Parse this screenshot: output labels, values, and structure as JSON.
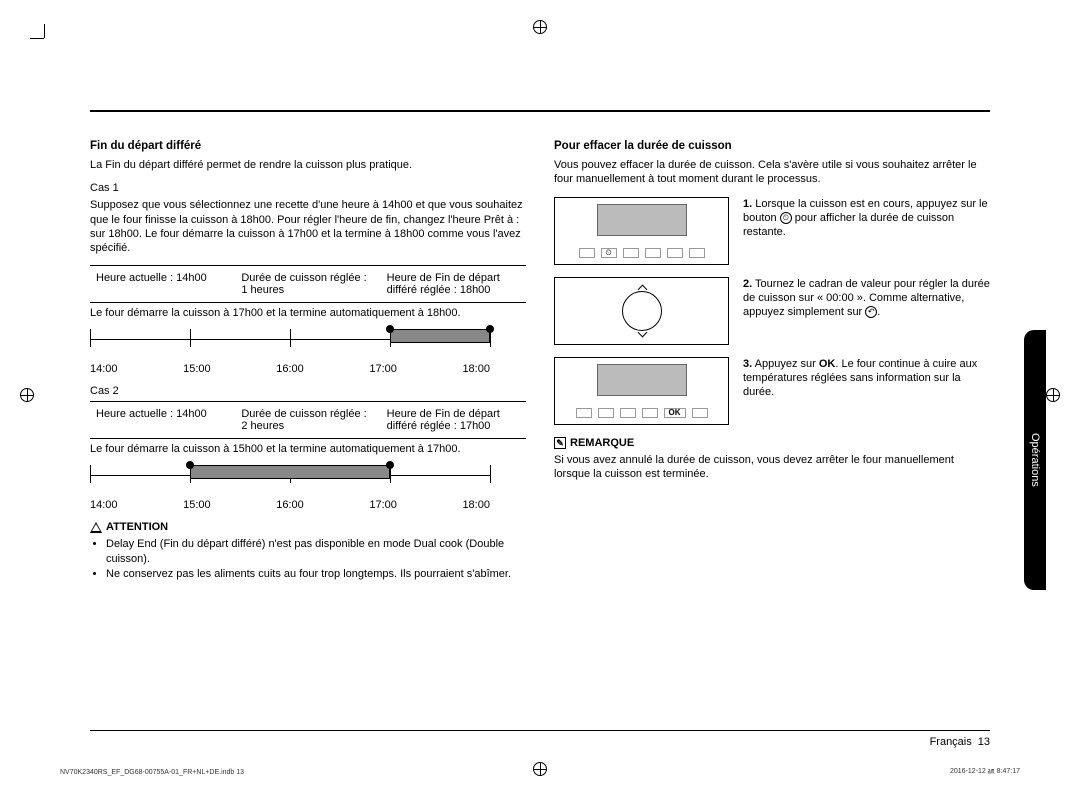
{
  "left": {
    "h1": "Fin du départ différé",
    "intro": "La Fin du départ différé permet de rendre la cuisson plus pratique.",
    "case1": {
      "label": "Cas 1",
      "desc": "Supposez que vous sélectionnez une recette d'une heure à 14h00 et que vous souhaitez que le four finisse la cuisson à 18h00. Pour régler l'heure de fin, changez l'heure Prêt à : sur 18h00. Le four démarre la cuisson à 17h00 et la termine à 18h00 comme vous l'avez spécifié.",
      "t1": "Heure actuelle : 14h00",
      "t2a": "Durée de cuisson réglée :",
      "t2b": "1 heures",
      "t3a": "Heure de Fin de départ",
      "t3b": "différé réglée : 18h00",
      "caption": "Le four démarre la cuisson à 17h00 et la termine automatiquement à 18h00.",
      "fill_start_pct": 75,
      "fill_end_pct": 100
    },
    "case2": {
      "label": "Cas 2",
      "t1": "Heure actuelle : 14h00",
      "t2a": "Durée de cuisson réglée :",
      "t2b": "2 heures",
      "t3a": "Heure de Fin de départ",
      "t3b": "différé réglée : 17h00",
      "caption": "Le four démarre la cuisson à 15h00 et la termine automatiquement à 17h00.",
      "fill_start_pct": 25,
      "fill_end_pct": 75
    },
    "timeline_labels": [
      "14:00",
      "15:00",
      "16:00",
      "17:00",
      "18:00"
    ],
    "attention": {
      "title": "ATTENTION",
      "b1": "Delay End (Fin du départ différé) n'est pas disponible en mode Dual cook (Double cuisson).",
      "b2": "Ne conservez pas les aliments cuits au four trop longtemps. Ils pourraient s'abîmer."
    }
  },
  "right": {
    "h1": "Pour effacer la durée de cuisson",
    "intro": "Vous pouvez effacer la durée de cuisson. Cela s'avère utile si vous souhaitez arrêter le four manuellement à tout moment durant le processus.",
    "step1": "Lorsque la cuisson est en cours, appuyez sur le bouton ",
    "step1b": " pour afficher la durée de cuisson restante.",
    "step2": "Tournez le cadran de valeur pour régler la durée de cuisson sur « 00:00 ». Comme alternative, appuyez simplement sur ",
    "step3a": "Appuyez sur ",
    "step3ok": "OK",
    "step3b": ". Le four continue à cuire aux températures réglées sans information sur la durée.",
    "remark": {
      "title": "REMARQUE",
      "text": "Si vous avez annulé la durée de cuisson, vous devez arrêter le four manuellement lorsque la cuisson est terminée."
    }
  },
  "sidetab": "Opérations",
  "footer": {
    "lang": "Français",
    "page": "13"
  },
  "meta": {
    "left": "NV70K2340RS_EF_DG68-00755A-01_FR+NL+DE.indb   13",
    "right": "2016-12-12   ㏂ 8:47:17"
  }
}
